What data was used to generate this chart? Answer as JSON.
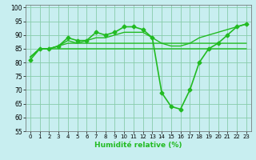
{
  "xlabel": "Humidité relative (%)",
  "bg_color": "#c8eef0",
  "grid_color": "#88ccaa",
  "line_color": "#22bb22",
  "xlim": [
    -0.5,
    23.5
  ],
  "ylim": [
    55,
    101
  ],
  "yticks": [
    55,
    60,
    65,
    70,
    75,
    80,
    85,
    90,
    95,
    100
  ],
  "xticks": [
    0,
    1,
    2,
    3,
    4,
    5,
    6,
    7,
    8,
    9,
    10,
    11,
    12,
    13,
    14,
    15,
    16,
    17,
    18,
    19,
    20,
    21,
    22,
    23
  ],
  "series": [
    {
      "x": [
        0,
        1,
        2,
        3,
        4,
        5,
        6,
        7,
        8,
        9,
        10,
        11,
        12,
        13,
        14,
        15,
        16,
        17,
        18,
        19,
        20,
        21,
        22,
        23
      ],
      "y": [
        81,
        85,
        85,
        86,
        89,
        88,
        88,
        91,
        90,
        91,
        93,
        93,
        92,
        89,
        69,
        64,
        63,
        70,
        80,
        85,
        87,
        90,
        93,
        94
      ],
      "marker": "D",
      "markersize": 2.5,
      "linewidth": 1.2
    },
    {
      "x": [
        0,
        1,
        2,
        3,
        4,
        5,
        6,
        7,
        8,
        9,
        10,
        11,
        12,
        13,
        14,
        15,
        16,
        17,
        18,
        19,
        20,
        21,
        22,
        23
      ],
      "y": [
        82,
        85,
        85,
        86,
        88,
        87,
        88,
        89,
        89,
        90,
        91,
        91,
        91,
        89,
        87,
        86,
        86,
        87,
        89,
        90,
        91,
        92,
        93,
        94
      ],
      "marker": null,
      "linewidth": 1.0
    },
    {
      "x": [
        0,
        1,
        2,
        3,
        4,
        5,
        6,
        7,
        8,
        9,
        10,
        11,
        12,
        13,
        14,
        15,
        16,
        17,
        18,
        19,
        20,
        21,
        22,
        23
      ],
      "y": [
        82,
        85,
        85,
        85,
        85,
        85,
        85,
        85,
        85,
        85,
        85,
        85,
        85,
        85,
        85,
        85,
        85,
        85,
        85,
        85,
        85,
        85,
        85,
        85
      ],
      "marker": null,
      "linewidth": 1.0
    },
    {
      "x": [
        0,
        1,
        2,
        3,
        4,
        5,
        6,
        7,
        8,
        9,
        10,
        11,
        12,
        13,
        14,
        15,
        16,
        17,
        18,
        19,
        20,
        21,
        22,
        23
      ],
      "y": [
        82,
        85,
        85,
        86,
        87,
        87,
        87,
        87,
        87,
        87,
        87,
        87,
        87,
        87,
        87,
        87,
        87,
        87,
        87,
        87,
        87,
        87,
        87,
        87
      ],
      "marker": null,
      "linewidth": 1.0
    }
  ]
}
